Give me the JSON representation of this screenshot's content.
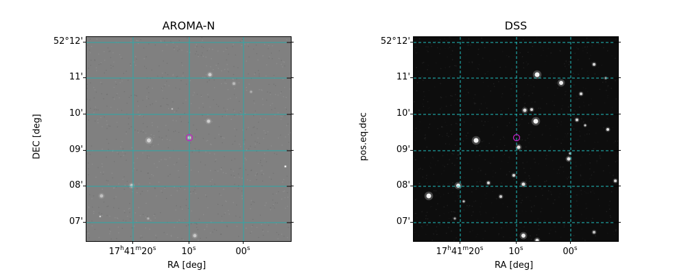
{
  "panels": [
    {
      "id": "aroma",
      "title": "AROMA-N",
      "xlabel": "RA [deg]",
      "ylabel": "DEC [deg]",
      "background": "#808080",
      "gridColor": "#2aa9a9",
      "gridStyle": "solid",
      "yticks": [
        "52°12'",
        "11'",
        "10'",
        "09'",
        "08'",
        "07'"
      ],
      "xticks": [
        {
          "h": "17",
          "hs": "h",
          "m": "41",
          "ms": "m",
          "s": "20",
          "ss": "s"
        },
        {
          "s": "10",
          "ss": "s"
        },
        {
          "s": "00",
          "ss": "s"
        }
      ]
    },
    {
      "id": "dss",
      "title": "DSS",
      "xlabel": "RA [deg]",
      "ylabel": "pos.eq.dec",
      "background": "#0d0d0d",
      "gridColor": "#21c4c4",
      "gridStyle": "dashed",
      "yticks": [
        "52°12'",
        "11'",
        "10'",
        "09'",
        "08'",
        "07'"
      ],
      "xticks": [
        {
          "h": "17",
          "hs": "h",
          "m": "41",
          "ms": "m",
          "s": "20",
          "ss": "s"
        },
        {
          "s": "10",
          "ss": "s"
        },
        {
          "s": "00",
          "ss": "s"
        }
      ]
    }
  ],
  "markerColor": "#c21fc2"
}
